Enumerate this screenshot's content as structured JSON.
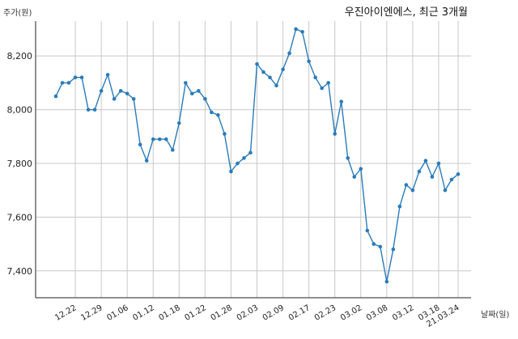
{
  "chart_data": {
    "type": "line",
    "title": "우진아이엔에스, 최근 3개월",
    "ylabel": "주가(원)",
    "xlabel": "날짜(일)",
    "ylim": [
      7300,
      8330
    ],
    "yticks": [
      7400,
      7600,
      7800,
      8000,
      8200
    ],
    "ytick_labels": [
      "7,400",
      "7,600",
      "7,800",
      "8,000",
      "8,200"
    ],
    "xtick_labels": [
      "12.22",
      "12.29",
      "01.06",
      "01.12",
      "01.18",
      "01.22",
      "01.28",
      "02.03",
      "02.09",
      "02.17",
      "02.23",
      "03.02",
      "03.08",
      "03.12",
      "03.18",
      "21.03.24"
    ],
    "xtick_index": [
      3,
      7,
      11,
      15,
      19,
      23,
      27,
      31,
      35,
      39,
      43,
      47,
      51,
      55,
      59,
      62
    ],
    "grid": true,
    "series": [
      {
        "color": "#2b7bb9",
        "values": [
          8050,
          8100,
          8100,
          8120,
          8120,
          8000,
          8000,
          8070,
          8130,
          8040,
          8070,
          8060,
          8040,
          7870,
          7810,
          7890,
          7890,
          7890,
          7850,
          7950,
          8100,
          8060,
          8070,
          8040,
          7990,
          7980,
          7910,
          7770,
          7800,
          7820,
          7840,
          8170,
          8140,
          8120,
          8090,
          8150,
          8210,
          8300,
          8290,
          8180,
          8120,
          8080,
          8100,
          7910,
          8030,
          7820,
          7750,
          7780,
          7550,
          7500,
          7490,
          7360,
          7480,
          7640,
          7720,
          7700,
          7770,
          7810,
          7750,
          7800,
          7700,
          7740,
          7760
        ]
      }
    ]
  }
}
